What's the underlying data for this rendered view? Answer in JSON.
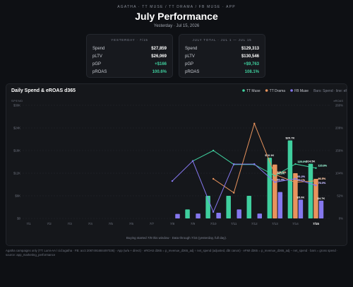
{
  "header": {
    "eyebrow": "AGATHA · TT MUSE / TT DRAMA / FB MUSE · APP",
    "title": "July Performance",
    "subtitle": "Yesterday · Jul 15, 2026"
  },
  "cards": [
    {
      "title": "YESTERDAY · 7/15",
      "rows": [
        [
          "Spend",
          "$27,859"
        ],
        [
          "pLTV",
          "$26,069"
        ],
        [
          "pGP",
          "+$166"
        ],
        [
          "pROAS",
          "100.6%"
        ]
      ]
    },
    {
      "title": "JULY TOTAL · JUL 1 — JUL 15",
      "rows": [
        [
          "Spend",
          "$129,313"
        ],
        [
          "pLTV",
          "$130,546"
        ],
        [
          "pGP",
          "+$9,763"
        ],
        [
          "pROAS",
          "108.1%"
        ]
      ]
    }
  ],
  "chart_data": {
    "type": "bar",
    "title": "Daily Spend & eROAS d365",
    "legend_note": "Bars: Spend · line: eROAS",
    "ylabel": "SPEND",
    "y2label": "eROAS",
    "categories": [
      "7/1",
      "7/2",
      "7/3",
      "7/4",
      "7/5",
      "7/6",
      "7/7",
      "7/8",
      "7/9",
      "7/10",
      "7/11",
      "7/12",
      "7/13",
      "7/14",
      "7/15"
    ],
    "ylim": [
      0,
      30000
    ],
    "yticks": [
      {
        "value": 0,
        "label": "$0"
      },
      {
        "value": 6000,
        "label": "$6K"
      },
      {
        "value": 12000,
        "label": "$12K"
      },
      {
        "value": 18000,
        "label": "$18K"
      },
      {
        "value": 24000,
        "label": "$24K"
      },
      {
        "value": 30000,
        "label": "$30K"
      }
    ],
    "y2lim": [
      0,
      260
    ],
    "y2ticks": [
      {
        "value": 0,
        "label": "0%"
      },
      {
        "value": 52,
        "label": "52%"
      },
      {
        "value": 104,
        "label": "104%"
      },
      {
        "value": 156,
        "label": "156%"
      },
      {
        "value": 208,
        "label": "208%"
      },
      {
        "value": 260,
        "label": "260%"
      }
    ],
    "grid": true,
    "series": [
      {
        "name": "TT Muse",
        "color": "#3fcf9e",
        "values": [
          null,
          null,
          null,
          null,
          null,
          null,
          null,
          null,
          2400,
          6000,
          6000,
          6000,
          16100,
          20700,
          14500
        ],
        "value_labels": [
          null,
          null,
          null,
          null,
          null,
          null,
          null,
          null,
          null,
          null,
          null,
          null,
          "$16.1K",
          "$20.7K",
          "$14.5K"
        ],
        "eroas": {
          "axis": "y2",
          "values": [
            null,
            null,
            null,
            null,
            null,
            null,
            null,
            null,
            132,
            156,
            124,
            124,
            98.3,
            125.0,
            115.8
          ],
          "value_labels": [
            null,
            null,
            null,
            null,
            null,
            null,
            null,
            null,
            null,
            null,
            null,
            null,
            "98.3%",
            "125.0%",
            "115.8%"
          ]
        }
      },
      {
        "name": "TT Drama",
        "color": "#e8935d",
        "values": [
          null,
          null,
          null,
          null,
          null,
          null,
          null,
          null,
          null,
          null,
          null,
          null,
          14300,
          12000,
          10500
        ],
        "value_labels": [
          null,
          null,
          null,
          null,
          null,
          null,
          null,
          null,
          null,
          null,
          null,
          null,
          null,
          null,
          null
        ],
        "eroas": {
          "axis": "y2",
          "values": [
            null,
            null,
            null,
            null,
            null,
            null,
            null,
            null,
            null,
            91,
            59,
            218,
            101.0,
            83.1,
            86.5
          ],
          "value_labels": [
            null,
            null,
            null,
            null,
            null,
            null,
            null,
            null,
            null,
            null,
            null,
            null,
            "101.0%",
            "83.1%",
            "86.5%"
          ]
        }
      },
      {
        "name": "FB Muse",
        "color": "#8577ee",
        "values": [
          null,
          null,
          null,
          null,
          null,
          null,
          null,
          1200,
          1300,
          1500,
          2400,
          1300,
          7000,
          5000,
          4700
        ],
        "value_labels": [
          null,
          null,
          null,
          null,
          null,
          null,
          null,
          null,
          null,
          null,
          null,
          null,
          null,
          "$5.0K",
          "$4.7K"
        ],
        "eroas": {
          "axis": "y2",
          "values": [
            null,
            null,
            null,
            null,
            null,
            null,
            null,
            86,
            132,
            15,
            125,
            125,
            83.4,
            91.2,
            76.0
          ],
          "value_labels": [
            null,
            null,
            null,
            null,
            null,
            null,
            null,
            null,
            null,
            null,
            null,
            null,
            "83.4%",
            "91.2%",
            "76.0%"
          ]
        }
      }
    ],
    "caption": "Buying started 7/8 this window · Data through 7/15 (yesterday, full day)."
  },
  "footnote": "Agatha campaigns only (TT: Lumi-AA / cid:agatha · FB: acct 2087491684497036) · App (w/a + direct) · eROAS d365 = p_revenue_d365_adj ÷ net_spend (adjusted, dbt canon) · eFMI d365 = p_revenue_d365_adj − net_spend · bars = gross spend · source: app_marketing_performance"
}
